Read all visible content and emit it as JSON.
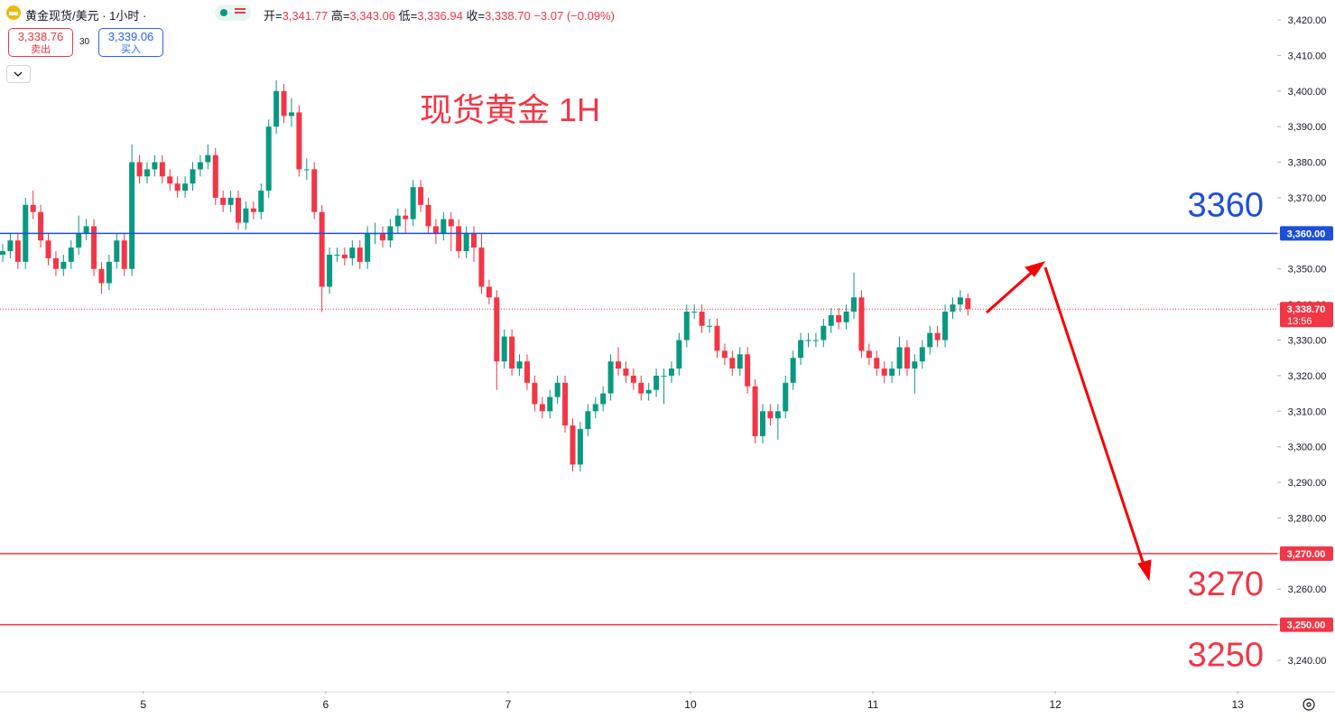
{
  "header": {
    "symbol": "黄金现货/美元 · 1小时 ·",
    "ohlc": [
      {
        "label": "开=",
        "value": "3,341.77"
      },
      {
        "label": "高=",
        "value": "3,343.06"
      },
      {
        "label": "低=",
        "value": "3,336.94"
      },
      {
        "label": "收=",
        "value": "3,338.70"
      }
    ],
    "change": "−3.07 (−0.09%)"
  },
  "trade": {
    "sell_price": "3,338.76",
    "sell_label": "卖出",
    "spread": "30",
    "buy_price": "3,339.06",
    "buy_label": "买入"
  },
  "chart_data": {
    "type": "candlestick",
    "title": "现货黄金 1H",
    "up_color": "#089981",
    "down_color": "#f23645",
    "open": [
      3354,
      3355,
      3358,
      3352,
      3368,
      3366,
      3358,
      3353,
      3350,
      3352,
      3356,
      3360,
      3362,
      3350,
      3346,
      3352,
      3358,
      3350,
      3380,
      3376,
      3378,
      3380,
      3376,
      3374,
      3372,
      3374,
      3378,
      3380,
      3382,
      3370,
      3368,
      3370,
      3363,
      3367,
      3366,
      3372,
      3390,
      3400,
      3393,
      3394,
      3378,
      3378,
      3366,
      3345,
      3354,
      3354,
      3353,
      3356,
      3352,
      3360,
      3360,
      3358,
      3362,
      3365,
      3364,
      3373,
      3368,
      3362,
      3360,
      3364,
      3362,
      3355,
      3360,
      3356,
      3345,
      3342,
      3324,
      3331,
      3322,
      3324,
      3318,
      3312,
      3310,
      3314,
      3318,
      3306,
      3295,
      3305,
      3310,
      3312,
      3315,
      3324,
      3322,
      3320,
      3318,
      3315,
      3316,
      3320,
      3320,
      3322,
      3330,
      3338,
      3338,
      3334,
      3334,
      3327,
      3325,
      3322,
      3326,
      3317,
      3303,
      3310,
      3308,
      3310,
      3318,
      3325,
      3330,
      3330,
      3330,
      3334,
      3337,
      3335,
      3338,
      3342,
      3327,
      3325,
      3322,
      3320,
      3322,
      3328,
      3322,
      3324,
      3328,
      3332,
      3330,
      3338,
      3340,
      3341.77
    ],
    "high": [
      3357,
      3360,
      3360,
      3370,
      3372,
      3368,
      3360,
      3355,
      3354,
      3358,
      3365,
      3364,
      3364,
      3352,
      3354,
      3360,
      3360,
      3385,
      3382,
      3380,
      3382,
      3382,
      3378,
      3376,
      3376,
      3380,
      3382,
      3385,
      3384,
      3372,
      3372,
      3372,
      3369,
      3369,
      3374,
      3392,
      3403,
      3402,
      3398,
      3396,
      3381,
      3380,
      3368,
      3356,
      3356,
      3356,
      3358,
      3358,
      3362,
      3363,
      3362,
      3364,
      3367,
      3367,
      3375,
      3375,
      3370,
      3364,
      3366,
      3366,
      3364,
      3362,
      3362,
      3360,
      3347,
      3344,
      3333,
      3333,
      3326,
      3326,
      3320,
      3314,
      3316,
      3320,
      3320,
      3308,
      3307,
      3312,
      3314,
      3317,
      3326,
      3328,
      3324,
      3322,
      3320,
      3318,
      3322,
      3322,
      3324,
      3332,
      3340,
      3340,
      3340,
      3336,
      3336,
      3329,
      3327,
      3328,
      3328,
      3319,
      3312,
      3312,
      3312,
      3320,
      3327,
      3332,
      3332,
      3332,
      3336,
      3339,
      3339,
      3340,
      3349,
      3344,
      3329,
      3327,
      3324,
      3324,
      3331,
      3330,
      3326,
      3330,
      3334,
      3334,
      3340,
      3342,
      3344,
      3343.06
    ],
    "low": [
      3352,
      3353,
      3350,
      3350,
      3364,
      3356,
      3351,
      3348,
      3348,
      3350,
      3354,
      3358,
      3348,
      3343,
      3344,
      3350,
      3348,
      3348,
      3374,
      3374,
      3376,
      3374,
      3372,
      3370,
      3370,
      3372,
      3376,
      3378,
      3368,
      3366,
      3366,
      3361,
      3361,
      3364,
      3364,
      3370,
      3388,
      3391,
      3390,
      3376,
      3375,
      3364,
      3338,
      3343,
      3352,
      3351,
      3351,
      3350,
      3350,
      3357,
      3356,
      3356,
      3360,
      3360,
      3362,
      3366,
      3360,
      3357,
      3358,
      3355,
      3353,
      3353,
      3352,
      3343,
      3340,
      3316,
      3322,
      3320,
      3320,
      3316,
      3310,
      3308,
      3308,
      3312,
      3304,
      3293,
      3293,
      3303,
      3308,
      3310,
      3313,
      3320,
      3318,
      3316,
      3313,
      3313,
      3314,
      3312,
      3318,
      3320,
      3328,
      3336,
      3332,
      3332,
      3325,
      3323,
      3320,
      3320,
      3315,
      3301,
      3301,
      3306,
      3302,
      3308,
      3316,
      3323,
      3328,
      3328,
      3328,
      3332,
      3333,
      3333,
      3336,
      3325,
      3323,
      3320,
      3318,
      3318,
      3320,
      3320,
      3315,
      3322,
      3326,
      3328,
      3328,
      3336,
      3338,
      3336.94
    ],
    "close": [
      3355,
      3358,
      3352,
      3368,
      3366,
      3358,
      3353,
      3350,
      3352,
      3356,
      3360,
      3362,
      3350,
      3346,
      3352,
      3358,
      3350,
      3380,
      3376,
      3378,
      3380,
      3376,
      3374,
      3372,
      3374,
      3378,
      3380,
      3382,
      3370,
      3368,
      3370,
      3363,
      3367,
      3366,
      3372,
      3390,
      3400,
      3393,
      3394,
      3378,
      3378,
      3366,
      3345,
      3354,
      3354,
      3353,
      3356,
      3352,
      3360,
      3360,
      3358,
      3362,
      3365,
      3364,
      3373,
      3368,
      3362,
      3360,
      3364,
      3362,
      3355,
      3360,
      3356,
      3345,
      3342,
      3324,
      3331,
      3322,
      3324,
      3318,
      3312,
      3310,
      3314,
      3318,
      3306,
      3295,
      3305,
      3310,
      3312,
      3315,
      3324,
      3322,
      3320,
      3318,
      3315,
      3316,
      3320,
      3320,
      3322,
      3330,
      3338,
      3338,
      3334,
      3334,
      3327,
      3325,
      3322,
      3326,
      3317,
      3303,
      3310,
      3308,
      3310,
      3318,
      3325,
      3330,
      3330,
      3330,
      3334,
      3337,
      3335,
      3338,
      3342,
      3327,
      3325,
      3322,
      3320,
      3322,
      3328,
      3322,
      3324,
      3328,
      3332,
      3330,
      3338,
      3340,
      3342,
      3338.7
    ],
    "xlim": [
      -0.356,
      167.7
    ],
    "xticks": [
      {
        "value": 18.5,
        "label": "5"
      },
      {
        "value": 42.5,
        "label": "6"
      },
      {
        "value": 66.5,
        "label": "7"
      },
      {
        "value": 90.5,
        "label": "10"
      },
      {
        "value": 114.5,
        "label": "11"
      },
      {
        "value": 138.5,
        "label": "12"
      },
      {
        "value": 162.5,
        "label": "13"
      }
    ],
    "ylim": [
      3231.37,
      3425.59
    ],
    "yticks": [
      {
        "value": 3240,
        "label": "3,240.00"
      },
      {
        "value": 3250,
        "label": "3,250.00"
      },
      {
        "value": 3260,
        "label": "3,260.00"
      },
      {
        "value": 3270,
        "label": "3,270.00"
      },
      {
        "value": 3280,
        "label": "3,280.00"
      },
      {
        "value": 3290,
        "label": "3,290.00"
      },
      {
        "value": 3300,
        "label": "3,300.00"
      },
      {
        "value": 3310,
        "label": "3,310.00"
      },
      {
        "value": 3320,
        "label": "3,320.00"
      },
      {
        "value": 3330,
        "label": "3,330.00"
      },
      {
        "value": 3340,
        "label": "3,340.00"
      },
      {
        "value": 3350,
        "label": "3,350.00"
      },
      {
        "value": 3360,
        "label": "3,360.00"
      },
      {
        "value": 3370,
        "label": "3,370.00"
      },
      {
        "value": 3380,
        "label": "3,380.00"
      },
      {
        "value": 3390,
        "label": "3,390.00"
      },
      {
        "value": 3400,
        "label": "3,400.00"
      },
      {
        "value": 3410,
        "label": "3,410.00"
      },
      {
        "value": 3420,
        "label": "3,420.00"
      }
    ],
    "levels": [
      {
        "value": 3360,
        "label": "3,360.00",
        "color": "#1e4fd8"
      },
      {
        "value": 3270,
        "label": "3,270.00",
        "color": "#f23645"
      },
      {
        "value": 3250,
        "label": "3,250.00",
        "color": "#f23645"
      }
    ],
    "last_price": {
      "value": 3338.7,
      "label": "3,338.70",
      "countdown": "13:56",
      "color": "#f23645"
    }
  }
}
